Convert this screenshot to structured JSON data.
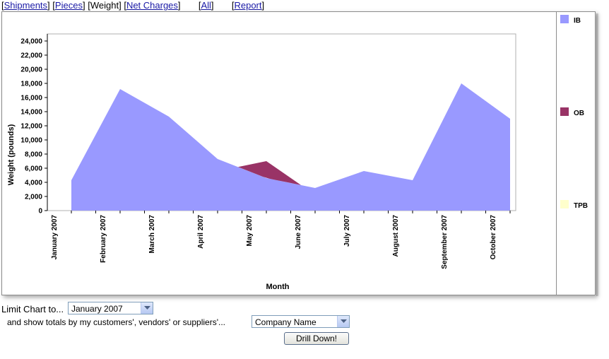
{
  "nav": {
    "shipments": "Shipments",
    "pieces": "Pieces",
    "weight": "Weight",
    "net_charges": "Net Charges",
    "all": "All",
    "report": "Report"
  },
  "chart_data": {
    "type": "area",
    "x": [
      "January 2007",
      "February 2007",
      "March 2007",
      "April 2007",
      "May 2007",
      "June 2007",
      "July 2007",
      "August 2007",
      "September 2007",
      "October 2007"
    ],
    "series": [
      {
        "name": "IB",
        "color": "#9999ff",
        "values": [
          4300,
          17200,
          13300,
          7300,
          4600,
          3200,
          5600,
          4300,
          18000,
          13000
        ]
      },
      {
        "name": "OB",
        "color": "#993366",
        "values": [
          null,
          null,
          null,
          null,
          7000,
          null,
          null,
          null,
          null,
          null
        ]
      },
      {
        "name": "TPB",
        "color": "#ffffcc",
        "values": [
          null,
          null,
          null,
          null,
          null,
          null,
          null,
          null,
          null,
          null
        ]
      }
    ],
    "ylabel": "Weight (pounds)",
    "xlabel": "Month",
    "ylim": [
      0,
      25000
    ],
    "yticks": [
      0,
      2000,
      4000,
      6000,
      8000,
      10000,
      12000,
      14000,
      16000,
      18000,
      20000,
      22000,
      24000
    ],
    "ytick_labels": [
      "0",
      "2,000",
      "4,000",
      "6,000",
      "8,000",
      "10,000",
      "12,000",
      "14,000",
      "16,000",
      "18,000",
      "20,000",
      "22,000",
      "24,000"
    ],
    "legend": "right",
    "grid": false
  },
  "controls": {
    "limit_label": "Limit Chart to...",
    "limit_value": "January 2007",
    "totals_label": "and show totals by my customers', vendors' or suppliers'...",
    "totals_value": "Company Name",
    "drill_button": "Drill Down!"
  }
}
